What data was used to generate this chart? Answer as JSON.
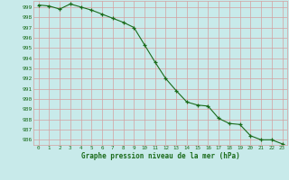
{
  "x": [
    0,
    1,
    2,
    3,
    4,
    5,
    6,
    7,
    8,
    9,
    10,
    11,
    12,
    13,
    14,
    15,
    16,
    17,
    18,
    19,
    20,
    21,
    22,
    23
  ],
  "y": [
    999.2,
    999.1,
    998.8,
    999.3,
    999.0,
    998.7,
    998.3,
    997.9,
    997.5,
    997.0,
    995.3,
    993.6,
    992.0,
    990.8,
    989.7,
    989.4,
    989.3,
    988.1,
    987.6,
    987.5,
    986.4,
    986.0,
    986.0,
    985.6
  ],
  "line_color": "#1a6b1a",
  "marker_color": "#1a6b1a",
  "bg_color": "#c8eaea",
  "grid_color": "#d4a0a0",
  "xlabel": "Graphe pression niveau de la mer (hPa)",
  "xlabel_color": "#1a6b1a",
  "tick_color": "#1a6b1a",
  "ylim_min": 985.5,
  "ylim_max": 999.6,
  "xlim_min": -0.5,
  "xlim_max": 23.5
}
